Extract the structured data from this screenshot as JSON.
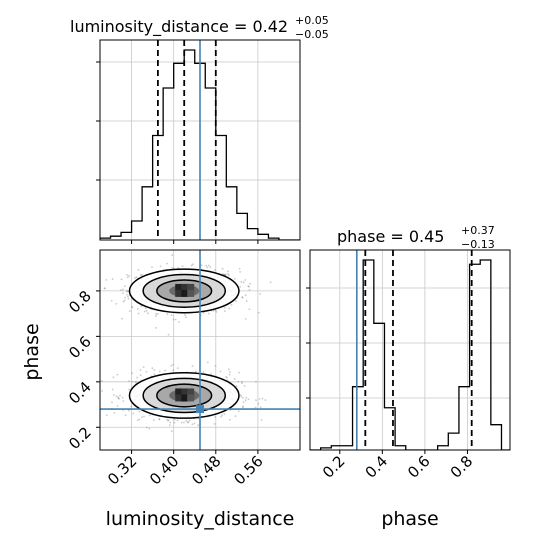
{
  "chart_data": {
    "type": "corner",
    "colors": {
      "truth": "#4682b4",
      "hist": "#000000",
      "grid": "#c8c8c8",
      "points": "#8a8a8a"
    },
    "truth": {
      "luminosity_distance": 0.45,
      "phase": 0.28
    },
    "params": [
      "luminosity_distance",
      "phase"
    ],
    "axis_labels": {
      "x_luminosity": "luminosity_distance",
      "y_phase": "phase",
      "x_phase": "phase"
    },
    "marginals": [
      {
        "name": "luminosity_distance",
        "title": {
          "main": "luminosity_distance = 0.42",
          "sup": "+0.05",
          "sub": "−0.05"
        },
        "xlim": [
          0.26,
          0.64
        ],
        "quantiles": [
          0.37,
          0.42,
          0.48
        ],
        "bins": [
          0.26,
          0.28,
          0.3,
          0.32,
          0.34,
          0.36,
          0.38,
          0.4,
          0.42,
          0.44,
          0.46,
          0.48,
          0.5,
          0.52,
          0.54,
          0.56,
          0.58,
          0.6,
          0.62,
          0.64
        ],
        "counts": [
          1,
          2,
          4,
          10,
          28,
          55,
          80,
          93,
          100,
          93,
          80,
          55,
          28,
          14,
          6,
          3,
          1,
          0,
          0
        ]
      },
      {
        "name": "phase",
        "title": {
          "main": "phase = 0.45",
          "sup": "+0.37",
          "sub": "−0.13"
        },
        "xlim": [
          0.06,
          1.0
        ],
        "quantiles": [
          0.32,
          0.45,
          0.82
        ],
        "bins": [
          0.06,
          0.11,
          0.16,
          0.21,
          0.26,
          0.31,
          0.36,
          0.41,
          0.46,
          0.51,
          0.56,
          0.61,
          0.66,
          0.71,
          0.76,
          0.81,
          0.86,
          0.91,
          0.96,
          1.01
        ],
        "counts": [
          0,
          1,
          2,
          2,
          30,
          90,
          60,
          20,
          2,
          0,
          0,
          0,
          2,
          8,
          30,
          88,
          90,
          12,
          0
        ]
      }
    ],
    "scatter": {
      "x": "luminosity_distance",
      "y": "phase",
      "xlim": [
        0.26,
        0.64
      ],
      "ylim": [
        0.1,
        0.98
      ],
      "clusters": [
        {
          "cx": 0.42,
          "cy": 0.8,
          "sx": 0.052,
          "sy": 0.048,
          "n": 900
        },
        {
          "cx": 0.42,
          "cy": 0.34,
          "sx": 0.052,
          "sy": 0.05,
          "n": 900
        }
      ],
      "truth_marker": {
        "x": 0.45,
        "y": 0.28
      }
    },
    "ticks": {
      "lum_x": [
        "0.32",
        "0.40",
        "0.48",
        "0.56"
      ],
      "phase_y": [
        "0.2",
        "0.4",
        "0.6",
        "0.8"
      ],
      "phase_x": [
        "0.2",
        "0.4",
        "0.6",
        "0.8"
      ]
    }
  }
}
